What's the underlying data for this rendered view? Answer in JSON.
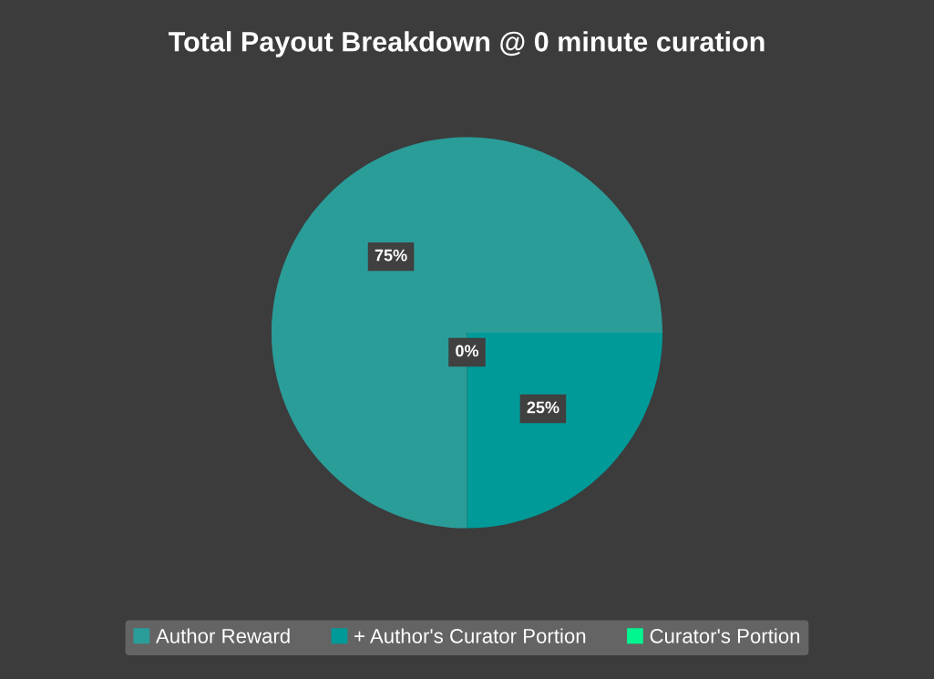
{
  "chart_data": {
    "type": "pie",
    "title": "Total Payout Breakdown @ 0 minute curation",
    "categories": [
      "Author Reward",
      "+ Author's Curator Portion",
      "Curator's Portion"
    ],
    "values": [
      75,
      25,
      0
    ],
    "colors": [
      "#2a9d99",
      "#009a98",
      "#00f58f"
    ],
    "value_labels": [
      "75%",
      "25%",
      "0%"
    ],
    "legend": "bottom"
  }
}
